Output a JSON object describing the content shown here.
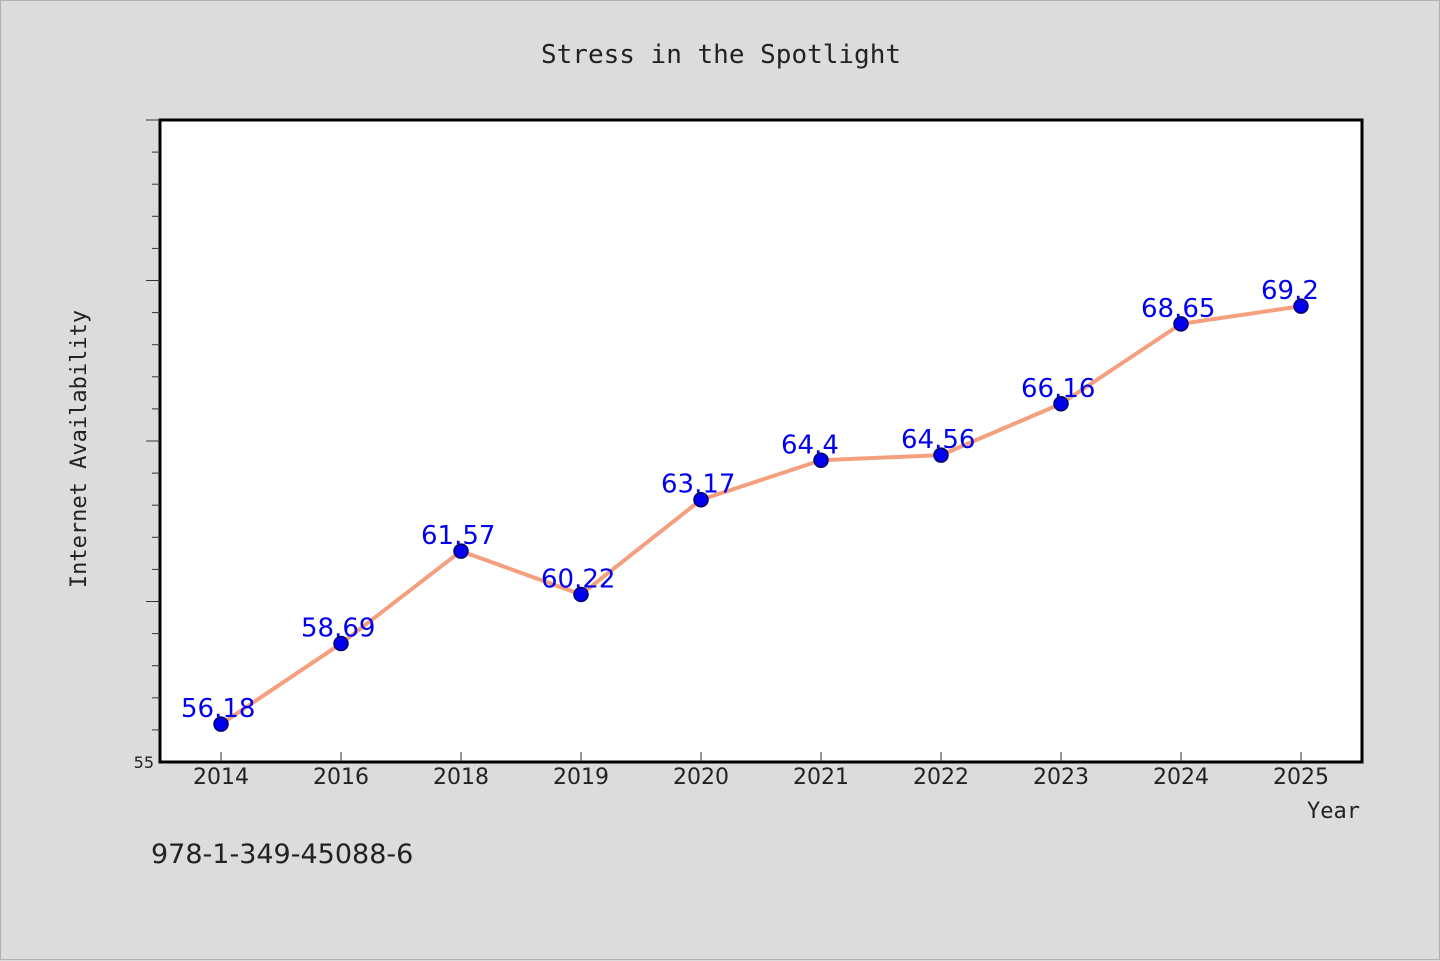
{
  "chart_data": {
    "type": "line",
    "title": "Stress in the Spotlight",
    "xlabel": "Year",
    "ylabel": "Internet Availability",
    "categories": [
      "2014",
      "2016",
      "2018",
      "2019",
      "2020",
      "2021",
      "2022",
      "2023",
      "2024",
      "2025"
    ],
    "series": [
      {
        "values": [
          56.18,
          58.69,
          61.57,
          60.22,
          63.17,
          64.4,
          64.56,
          66.16,
          68.65,
          69.2
        ]
      }
    ],
    "data_labels": [
      "56.18",
      "58.69",
      "61.57",
      "60.22",
      "63.17",
      "64.4",
      "64.56",
      "66.16",
      "68.65",
      "69.2"
    ],
    "ylim": [
      55,
      75
    ],
    "yticks_labeled": [
      "55"
    ],
    "grid": false,
    "legend": "none",
    "colors": {
      "line": "#f4a07f",
      "marker": "#0000ee",
      "marker_edge": "#000066",
      "data_label": "#0000ee",
      "plot_background": "#ffffff",
      "page_background": "#dcdcdc"
    }
  },
  "footer_text": "978-1-349-45088-6"
}
